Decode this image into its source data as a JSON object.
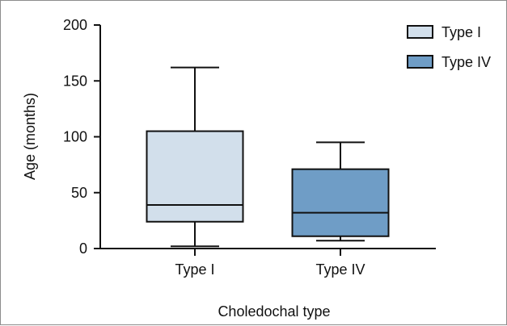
{
  "chart_data": {
    "type": "box",
    "title": "",
    "xlabel": "Choledochal type",
    "ylabel": "Age (months)",
    "ylim": [
      0,
      200
    ],
    "yticks": [
      0,
      50,
      100,
      150,
      200
    ],
    "categories": [
      "Type I",
      "Type IV"
    ],
    "series": [
      {
        "name": "Type I",
        "min": 2,
        "q1": 24,
        "median": 39,
        "q3": 105,
        "max": 162,
        "color": "#d2dfeb"
      },
      {
        "name": "Type IV",
        "min": 7,
        "q1": 11,
        "median": 32,
        "q3": 71,
        "max": 95,
        "color": "#6f9dc6"
      }
    ],
    "legend": {
      "position": "top-right",
      "items": [
        "Type I",
        "Type IV"
      ]
    },
    "grid": false
  }
}
